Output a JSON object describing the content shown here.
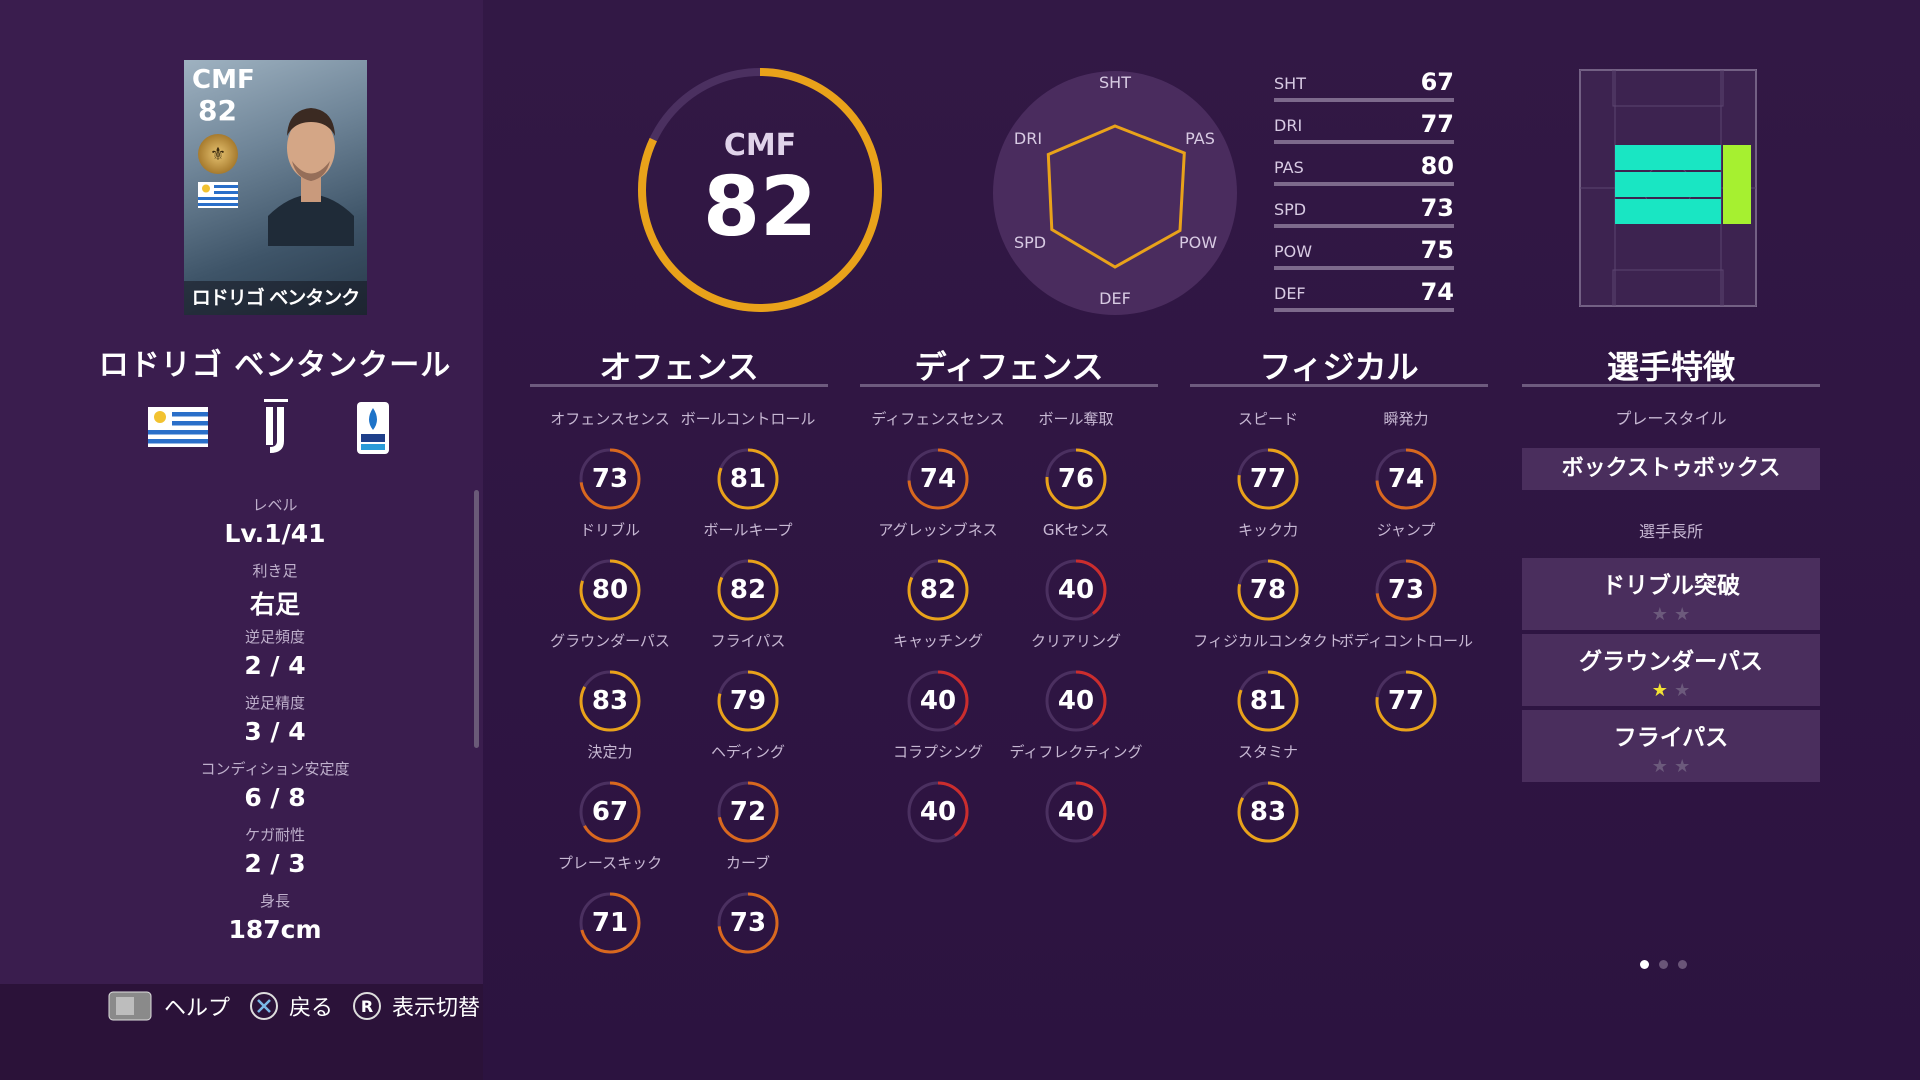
{
  "card": {
    "position": "CMF",
    "overall": "82",
    "name": "ロドリゴ ベンタンクール"
  },
  "player_name": "ロドリゴ ベンタンクール",
  "info": [
    {
      "label": "レベル",
      "value": "Lv.1/41"
    },
    {
      "label": "利き足",
      "value": "右足"
    },
    {
      "label": "逆足頻度",
      "value": "2 / 4"
    },
    {
      "label": "逆足精度",
      "value": "3 / 4"
    },
    {
      "label": "コンディション安定度",
      "value": "6 / 8"
    },
    {
      "label": "ケガ耐性",
      "value": "2 / 3"
    },
    {
      "label": "身長",
      "value": "187cm"
    }
  ],
  "hints": [
    {
      "icon": "touchpad-icon",
      "label": "ヘルプ"
    },
    {
      "icon": "cross-button-icon",
      "label": "戻る"
    },
    {
      "icon": "r-button-icon",
      "label": "表示切替"
    }
  ],
  "overall": {
    "position": "CMF",
    "value": "82",
    "fraction": 0.82
  },
  "radar": {
    "labels": [
      "SHT",
      "PAS",
      "POW",
      "DEF",
      "SPD",
      "DRI"
    ],
    "values": [
      67,
      80,
      75,
      74,
      73,
      77
    ]
  },
  "summary": [
    {
      "label": "SHT",
      "value": "67"
    },
    {
      "label": "DRI",
      "value": "77"
    },
    {
      "label": "PAS",
      "value": "80"
    },
    {
      "label": "SPD",
      "value": "73"
    },
    {
      "label": "POW",
      "value": "75"
    },
    {
      "label": "DEF",
      "value": "74"
    }
  ],
  "sections": {
    "offense": {
      "title": "オフェンス",
      "stats": [
        {
          "label": "オフェンスセンス",
          "value": "73"
        },
        {
          "label": "ボールコントロール",
          "value": "81"
        },
        {
          "label": "ドリブル",
          "value": "80"
        },
        {
          "label": "ボールキープ",
          "value": "82"
        },
        {
          "label": "グラウンダーパス",
          "value": "83"
        },
        {
          "label": "フライパス",
          "value": "79"
        },
        {
          "label": "決定力",
          "value": "67"
        },
        {
          "label": "ヘディング",
          "value": "72"
        },
        {
          "label": "プレースキック",
          "value": "71"
        },
        {
          "label": "カーブ",
          "value": "73"
        }
      ]
    },
    "defense": {
      "title": "ディフェンス",
      "stats": [
        {
          "label": "ディフェンスセンス",
          "value": "74"
        },
        {
          "label": "ボール奪取",
          "value": "76"
        },
        {
          "label": "アグレッシブネス",
          "value": "82"
        },
        {
          "label": "GKセンス",
          "value": "40"
        },
        {
          "label": "キャッチング",
          "value": "40"
        },
        {
          "label": "クリアリング",
          "value": "40"
        },
        {
          "label": "コラプシング",
          "value": "40"
        },
        {
          "label": "ディフレクティング",
          "value": "40"
        }
      ]
    },
    "physical": {
      "title": "フィジカル",
      "stats": [
        {
          "label": "スピード",
          "value": "77"
        },
        {
          "label": "瞬発力",
          "value": "74"
        },
        {
          "label": "キック力",
          "value": "78"
        },
        {
          "label": "ジャンプ",
          "value": "73"
        },
        {
          "label": "フィジカルコンタクト",
          "value": "81"
        },
        {
          "label": "ボディコントロール",
          "value": "77"
        },
        {
          "label": "スタミナ",
          "value": "83"
        }
      ]
    }
  },
  "traits": {
    "title": "選手特徴",
    "playstyle_label": "プレースタイル",
    "playstyle": "ボックストゥボックス",
    "skills_label": "選手長所",
    "skills": [
      {
        "name": "ドリブル突破",
        "stars": 0
      },
      {
        "name": "グラウンダーパス",
        "stars": 1
      },
      {
        "name": "フライパス",
        "stars": 0
      }
    ]
  },
  "colors": {
    "gold": "#e9a21a",
    "red": "#cc2d2d",
    "orange": "#d9681e",
    "cyan": "#19e6c3",
    "lime": "#a6f030"
  }
}
